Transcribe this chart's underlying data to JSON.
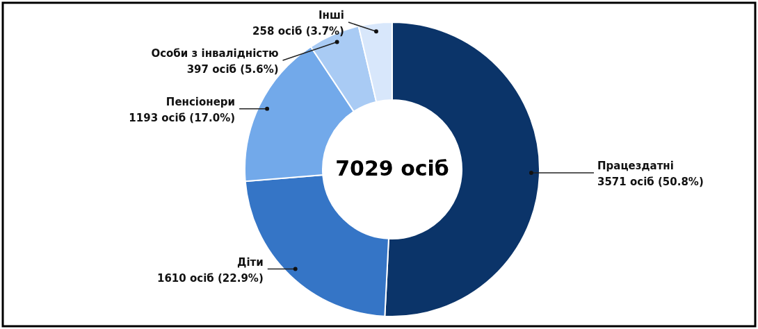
{
  "chart_data": {
    "type": "donut",
    "categories": [
      "Працездатні",
      "Діти",
      "Пенсіонери",
      "Особи з інвалідністю",
      "Інші"
    ],
    "values": [
      3571,
      1610,
      1193,
      397,
      258
    ],
    "colors": [
      "#0b3469",
      "#3575c6",
      "#72a9ea",
      "#a9cbf4",
      "#d8e7fb"
    ],
    "value_labels": [
      "3571 осіб (50.8%)",
      "1610 осіб (22.9%)",
      "1193 осіб (17.0%)",
      "397 осіб (5.6%)",
      "258 осіб (3.7%)"
    ],
    "annotations": [
      "7029 осіб"
    ]
  }
}
